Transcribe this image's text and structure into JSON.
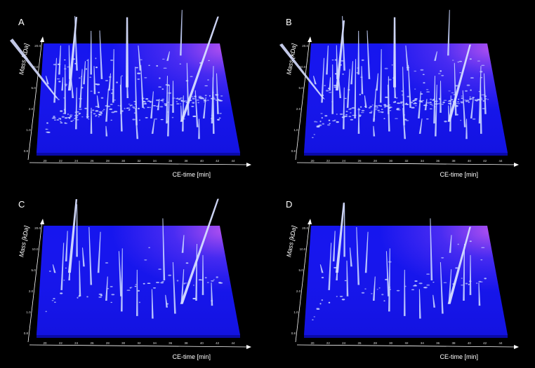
{
  "figure": {
    "panels": [
      {
        "label": "A",
        "xlabel": "CE-time [min]",
        "ylabel": "Mass [kDa]"
      },
      {
        "label": "B",
        "xlabel": "CE-time [min]",
        "ylabel": "Mass [kDa]"
      },
      {
        "label": "C",
        "xlabel": "CE-time [min]",
        "ylabel": "Mass [kDa]"
      },
      {
        "label": "D",
        "xlabel": "CE-time [min]",
        "ylabel": "Mass [kDa]"
      }
    ],
    "x_ticks": [
      "20",
      "22",
      "24",
      "26",
      "28",
      "30",
      "32",
      "34",
      "36",
      "38",
      "40",
      "42",
      "44"
    ],
    "y_ticks": [
      "0.8",
      "1.0",
      "2.0",
      "5.0",
      "10.0",
      "20.0"
    ],
    "colors": {
      "background": "#000000",
      "plane": "#1a1af0",
      "plane_glow": "#9a3cf5",
      "peak": "#c8d4ff",
      "axis": "#ffffff"
    }
  },
  "chart_data": [
    {
      "type": "scatter",
      "panel": "A",
      "xlabel": "CE-time [min]",
      "ylabel": "Mass [kDa]",
      "xlim": [
        19,
        45
      ],
      "ylim": [
        0.8,
        20
      ],
      "series": [
        {
          "points": [
            [
              20,
              6
            ],
            [
              21,
              3.5
            ],
            [
              21.5,
              8
            ],
            [
              22,
              5
            ],
            [
              22.5,
              2.5
            ],
            [
              23,
              7
            ],
            [
              23.5,
              4
            ],
            [
              24,
              9
            ],
            [
              24.5,
              3
            ],
            [
              25,
              6
            ],
            [
              25.5,
              2.2
            ],
            [
              26,
              8
            ],
            [
              26.5,
              4.5
            ],
            [
              27,
              3
            ],
            [
              27.5,
              7
            ],
            [
              28,
              2
            ],
            [
              28.5,
              5
            ],
            [
              29,
              3.5
            ],
            [
              30,
              2.5
            ],
            [
              31,
              4
            ],
            [
              32,
              1.8
            ],
            [
              33,
              3
            ],
            [
              34,
              2.2
            ],
            [
              35,
              2.8
            ],
            [
              36,
              1.9
            ],
            [
              37,
              2.6
            ],
            [
              38,
              2
            ],
            [
              39,
              2.4
            ],
            [
              40,
              1.7
            ],
            [
              41,
              2.2
            ],
            [
              42,
              1.9
            ],
            [
              24,
              1.6
            ],
            [
              26,
              1.4
            ],
            [
              28,
              1.3
            ],
            [
              30,
              1.5
            ],
            [
              32,
              1.2
            ],
            [
              34,
              1.4
            ],
            [
              36,
              1.3
            ],
            [
              38,
              1.5
            ],
            [
              40,
              1.2
            ],
            [
              42,
              1.4
            ],
            [
              43,
              2.5
            ],
            [
              33,
              9
            ],
            [
              37,
              12
            ],
            [
              39,
              14
            ]
          ]
        }
      ]
    },
    {
      "type": "scatter",
      "panel": "B",
      "xlabel": "CE-time [min]",
      "ylabel": "Mass [kDa]",
      "xlim": [
        19,
        45
      ],
      "ylim": [
        0.8,
        20
      ],
      "series": [
        {
          "points": [
            [
              20,
              6
            ],
            [
              21,
              3.5
            ],
            [
              21.5,
              8
            ],
            [
              22,
              5
            ],
            [
              22.5,
              2.5
            ],
            [
              23,
              7
            ],
            [
              23.5,
              4
            ],
            [
              24,
              9
            ],
            [
              24.5,
              3
            ],
            [
              25,
              6
            ],
            [
              25.5,
              2.2
            ],
            [
              26,
              8
            ],
            [
              26.5,
              4.5
            ],
            [
              27,
              3
            ],
            [
              27.5,
              7
            ],
            [
              28,
              2
            ],
            [
              28.5,
              5
            ],
            [
              29,
              3.5
            ],
            [
              30,
              2.5
            ],
            [
              31,
              4
            ],
            [
              32,
              1.8
            ],
            [
              33,
              3
            ],
            [
              34,
              2.2
            ],
            [
              35,
              2.8
            ],
            [
              36,
              1.9
            ],
            [
              37,
              2.6
            ],
            [
              38,
              2
            ],
            [
              39,
              2.4
            ],
            [
              40,
              1.7
            ],
            [
              41,
              2.2
            ],
            [
              42,
              1.9
            ],
            [
              24,
              1.6
            ],
            [
              26,
              1.4
            ],
            [
              28,
              1.3
            ],
            [
              30,
              1.5
            ],
            [
              32,
              1.2
            ],
            [
              34,
              1.4
            ],
            [
              36,
              1.3
            ],
            [
              38,
              1.5
            ],
            [
              40,
              1.2
            ],
            [
              42,
              1.4
            ],
            [
              43,
              2.5
            ],
            [
              33,
              9
            ],
            [
              37,
              12
            ],
            [
              39,
              14
            ]
          ]
        }
      ]
    },
    {
      "type": "scatter",
      "panel": "C",
      "xlabel": "CE-time [min]",
      "ylabel": "Mass [kDa]",
      "xlim": [
        19,
        45
      ],
      "ylim": [
        0.8,
        20
      ],
      "series": [
        {
          "points": [
            [
              21,
              5
            ],
            [
              22,
              3
            ],
            [
              22.5,
              7
            ],
            [
              23,
              4
            ],
            [
              24,
              8
            ],
            [
              24.5,
              2.5
            ],
            [
              25,
              6
            ],
            [
              26,
              3.5
            ],
            [
              27,
              5
            ],
            [
              28,
              2.2
            ],
            [
              30,
              1.6
            ],
            [
              32,
              1.4
            ],
            [
              34,
              1.3
            ],
            [
              36,
              1.8
            ],
            [
              37,
              1.5
            ],
            [
              38,
              2
            ],
            [
              39,
              9
            ],
            [
              40,
              2.2
            ],
            [
              41,
              2.6
            ],
            [
              42,
              1.9
            ],
            [
              36,
              4
            ],
            [
              30,
              2.5
            ]
          ]
        }
      ]
    },
    {
      "type": "scatter",
      "panel": "D",
      "xlabel": "CE-time [min]",
      "ylabel": "Mass [kDa]",
      "xlim": [
        19,
        45
      ],
      "ylim": [
        0.8,
        20
      ],
      "series": [
        {
          "points": [
            [
              21,
              5
            ],
            [
              22,
              3
            ],
            [
              22.5,
              7
            ],
            [
              23,
              4
            ],
            [
              24,
              8
            ],
            [
              24.5,
              2.5
            ],
            [
              25,
              6
            ],
            [
              26,
              3.5
            ],
            [
              27,
              5
            ],
            [
              28,
              2.2
            ],
            [
              30,
              1.6
            ],
            [
              32,
              1.4
            ],
            [
              34,
              1.3
            ],
            [
              36,
              1.8
            ],
            [
              37,
              1.5
            ],
            [
              38,
              2
            ],
            [
              39,
              9
            ],
            [
              40,
              2.2
            ],
            [
              41,
              2.6
            ],
            [
              42,
              1.9
            ],
            [
              36,
              4
            ],
            [
              30,
              2.5
            ]
          ]
        }
      ]
    }
  ]
}
